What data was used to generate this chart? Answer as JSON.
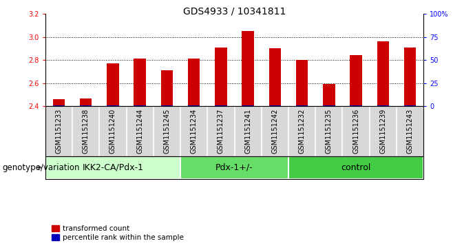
{
  "title": "GDS4933 / 10341811",
  "samples": [
    "GSM1151233",
    "GSM1151238",
    "GSM1151240",
    "GSM1151244",
    "GSM1151245",
    "GSM1151234",
    "GSM1151237",
    "GSM1151241",
    "GSM1151242",
    "GSM1151232",
    "GSM1151235",
    "GSM1151236",
    "GSM1151239",
    "GSM1151243"
  ],
  "red_values": [
    2.46,
    2.47,
    2.77,
    2.81,
    2.71,
    2.81,
    2.91,
    3.05,
    2.9,
    2.8,
    2.595,
    2.84,
    2.96,
    2.91
  ],
  "blue_percentile": [
    1,
    1,
    1,
    1,
    1,
    1,
    1,
    1,
    1,
    1,
    1,
    1,
    1,
    1
  ],
  "y_min": 2.4,
  "y_max": 3.2,
  "groups": [
    {
      "label": "IKK2-CA/Pdx-1",
      "start": 0,
      "end": 5,
      "color": "#ccffcc"
    },
    {
      "label": "Pdx-1+/-",
      "start": 5,
      "end": 9,
      "color": "#66dd66"
    },
    {
      "label": "control",
      "start": 9,
      "end": 14,
      "color": "#44cc44"
    }
  ],
  "left_yticks": [
    2.4,
    2.6,
    2.8,
    3.0,
    3.2
  ],
  "right_yticks": [
    0,
    25,
    50,
    75,
    100
  ],
  "bar_color_red": "#cc0000",
  "bar_color_blue": "#0000bb",
  "legend_red": "transformed count",
  "legend_blue": "percentile rank within the sample",
  "xlabel_label": "genotype/variation",
  "title_fontsize": 10,
  "tick_fontsize": 7,
  "label_fontsize": 8.5,
  "group_fontsize": 9
}
